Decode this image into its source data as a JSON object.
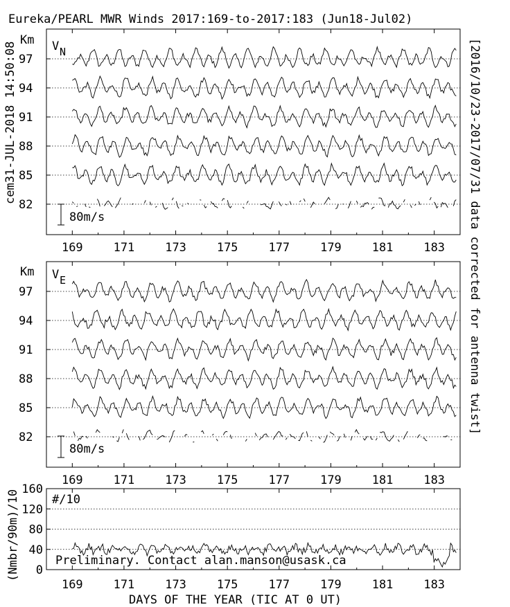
{
  "title": "Eureka/PEARL MWR Winds 2017:169-to-2017:183 (Jun18-Jul02)",
  "left_stamp": "cem31-JUL-2018 14:50:08",
  "right_note": "[2016/10/23-2017/07/31 data corrected for antenna twist]",
  "footer_xlabel": "DAYS OF THE YEAR (TIC AT 0 UT)",
  "chart_data": [
    {
      "type": "line",
      "panel": "VN",
      "panel_label_main": "V",
      "panel_label_sub": "N",
      "y_unit_label": "Km",
      "altitudes_km": [
        "97",
        "94",
        "91",
        "88",
        "85",
        "82"
      ],
      "scale_bar_label": "80m/s",
      "x_ticks": [
        "169",
        "171",
        "173",
        "175",
        "177",
        "179",
        "181",
        "183"
      ],
      "xlim": [
        168,
        184
      ],
      "grid": "dotted horizontal baseline per altitude"
    },
    {
      "type": "line",
      "panel": "VE",
      "panel_label_main": "V",
      "panel_label_sub": "E",
      "y_unit_label": "Km",
      "altitudes_km": [
        "97",
        "94",
        "91",
        "88",
        "85",
        "82"
      ],
      "scale_bar_label": "80m/s",
      "x_ticks": [
        "169",
        "171",
        "173",
        "175",
        "177",
        "179",
        "181",
        "183"
      ],
      "xlim": [
        168,
        184
      ],
      "grid": "dotted horizontal baseline per altitude"
    },
    {
      "type": "line",
      "panel": "counts",
      "panel_label": "#/10",
      "ylabel": "(Nmbr/90m)/10",
      "y_ticks": [
        "160",
        "120",
        "80",
        "40",
        "0"
      ],
      "ylim": [
        0,
        160
      ],
      "gridlines_at": [
        40,
        80,
        120
      ],
      "annotation": "Preliminary. Contact alan.manson@usask.ca",
      "x_ticks": [
        "169",
        "171",
        "173",
        "175",
        "177",
        "179",
        "181",
        "183"
      ],
      "xlim": [
        168,
        184
      ]
    }
  ]
}
